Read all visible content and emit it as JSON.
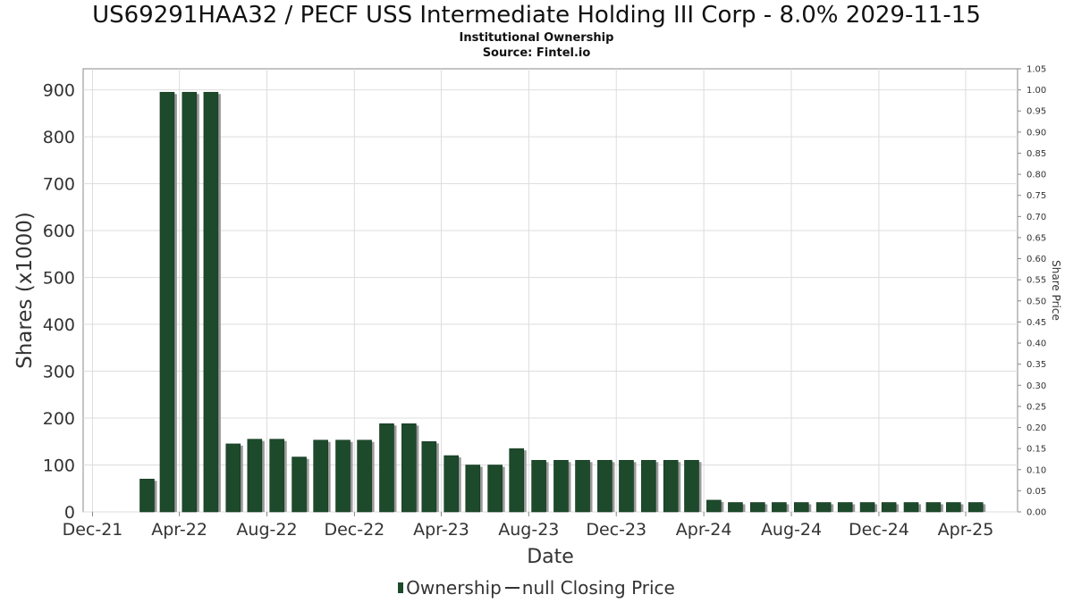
{
  "title": "US69291HAA32 / PECF USS Intermediate Holding III Corp - 8.0% 2029-11-15",
  "subtitles": [
    "Institutional Ownership",
    "Source: Fintel.io"
  ],
  "legend": {
    "ownership": "Ownership",
    "price": "null Closing Price"
  },
  "colors": {
    "bar": "#1d4a2b",
    "bar_shadow": "#9a9a9a",
    "grid": "#dddddd",
    "axis": "#888888"
  },
  "chart_data": {
    "type": "bar",
    "xlabel": "Date",
    "ylabel": "Shares (x1000)",
    "y2label": "Share Price",
    "ylim": [
      0,
      945
    ],
    "y2lim": [
      0,
      1.05
    ],
    "y_ticks": [
      0,
      100,
      200,
      300,
      400,
      500,
      600,
      700,
      800,
      900
    ],
    "y2_ticks": [
      "0.00",
      "0.05",
      "0.10",
      "0.15",
      "0.20",
      "0.25",
      "0.30",
      "0.35",
      "0.40",
      "0.45",
      "0.50",
      "0.55",
      "0.60",
      "0.65",
      "0.70",
      "0.75",
      "0.80",
      "0.85",
      "0.90",
      "0.95",
      "1.00",
      "1.05"
    ],
    "x_ticks": [
      "Dec-21",
      "Apr-22",
      "Aug-22",
      "Dec-22",
      "Apr-23",
      "Aug-23",
      "Dec-23",
      "Apr-24",
      "Aug-24",
      "Dec-24",
      "Apr-25"
    ],
    "grid": true,
    "legend_position": "bottom",
    "series": [
      {
        "name": "Ownership",
        "x": [
          "2022-02-15",
          "2022-03-15",
          "2022-04-15",
          "2022-05-15",
          "2022-06-15",
          "2022-07-15",
          "2022-08-15",
          "2022-09-15",
          "2022-10-15",
          "2022-11-15",
          "2022-12-15",
          "2023-01-15",
          "2023-02-15",
          "2023-03-15",
          "2023-04-15",
          "2023-05-15",
          "2023-06-15",
          "2023-07-15",
          "2023-08-15",
          "2023-09-15",
          "2023-10-15",
          "2023-11-15",
          "2023-12-15",
          "2024-01-15",
          "2024-02-15",
          "2024-03-15",
          "2024-04-15",
          "2024-05-15",
          "2024-06-15",
          "2024-07-15",
          "2024-08-15",
          "2024-09-15",
          "2024-10-15",
          "2024-11-15",
          "2024-12-15",
          "2025-01-15",
          "2025-02-15",
          "2025-03-15",
          "2025-04-15"
        ],
        "values": [
          70,
          895,
          895,
          895,
          145,
          155,
          155,
          117,
          153,
          153,
          153,
          188,
          188,
          150,
          120,
          100,
          100,
          135,
          110,
          110,
          110,
          110,
          110,
          110,
          110,
          110,
          25,
          20,
          20,
          20,
          20,
          20,
          20,
          20,
          20,
          20,
          20,
          20,
          20
        ]
      }
    ]
  }
}
